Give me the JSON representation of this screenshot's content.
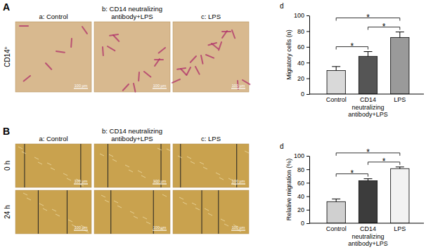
{
  "chart_data": [
    {
      "type": "bar",
      "title": "d",
      "y_label": "Migratory cells (n)",
      "categories": [
        "Control",
        "CD14 neutralizing antibody+LPS",
        "LPS"
      ],
      "values": [
        30,
        48,
        72
      ],
      "errors": [
        5,
        6,
        7
      ],
      "colors": [
        "#d9d9d9",
        "#555555",
        "#9a9a9a"
      ],
      "ylim": [
        0,
        100
      ],
      "yticks": [
        0,
        20,
        40,
        60,
        80,
        100
      ],
      "annotations": [
        {
          "text": "*",
          "between": [
            "Control",
            "CD14 neutralizing antibody+LPS"
          ]
        },
        {
          "text": "*",
          "between": [
            "CD14 neutralizing antibody+LPS",
            "LPS"
          ]
        },
        {
          "text": "*",
          "between": [
            "Control",
            "LPS"
          ]
        }
      ]
    },
    {
      "type": "bar",
      "title": "d",
      "y_label": "Relative migration (%)",
      "categories": [
        "Control",
        "CD14 neutralizing antibody+LPS",
        "LPS"
      ],
      "values": [
        32,
        63,
        81
      ],
      "errors": [
        4,
        3,
        2.5
      ],
      "colors": [
        "#d0d0d0",
        "#3c3c3c",
        "#f2f2f2"
      ],
      "ylim": [
        0,
        100
      ],
      "yticks": [
        0,
        20,
        40,
        60,
        80,
        100
      ],
      "annotations": [
        {
          "text": "*",
          "between": [
            "Control",
            "CD14 neutralizing antibody+LPS"
          ]
        },
        {
          "text": "*",
          "between": [
            "CD14 neutralizing antibody+LPS",
            "LPS"
          ]
        },
        {
          "text": "*",
          "between": [
            "Control",
            "LPS"
          ]
        }
      ]
    }
  ],
  "figure": {
    "panels": [
      {
        "label": "A",
        "columns": [
          "a: Control",
          "b: CD14 neutralizing antibody+LPS",
          "c: LPS"
        ],
        "rows": [
          "CD14+"
        ],
        "scale_bar": "100 µm"
      },
      {
        "label": "B",
        "columns": [
          "a: Control",
          "b: CD14 neutralizing antibody+LPS",
          "c: LPS"
        ],
        "rows": [
          "0 h",
          "24 h"
        ],
        "scale_bar": "100 µm"
      }
    ]
  }
}
